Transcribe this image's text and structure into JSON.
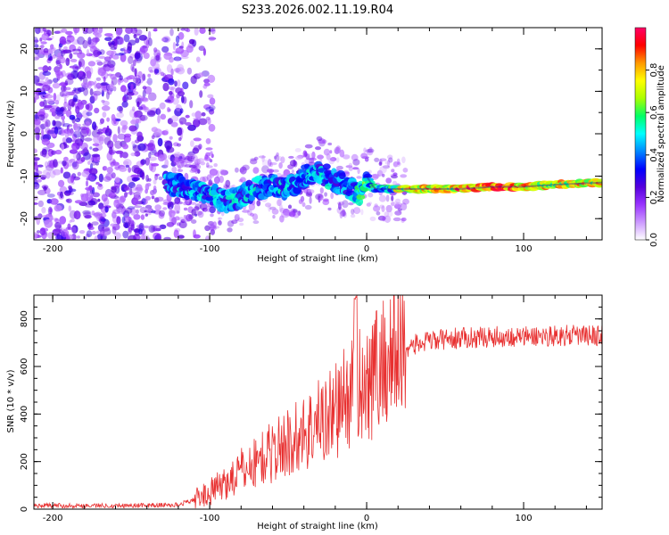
{
  "title": "S233.2026.002.11.19.R04",
  "chart_data": [
    {
      "type": "heatmap",
      "xlabel": "Height of straight line (km)",
      "ylabel": "Frequency (Hz)",
      "xlim": [
        -212,
        150
      ],
      "ylim": [
        -25,
        25
      ],
      "xticks": [
        -200,
        -100,
        0,
        100
      ],
      "yticks": [
        20,
        10,
        0,
        -10,
        -20
      ],
      "colorbar": {
        "label": "Normalized spectral amplitude",
        "range": [
          0,
          1
        ],
        "ticks": [
          "0.0",
          "0.2",
          "0.4",
          "0.6",
          "0.8"
        ],
        "colors": [
          "#ffffff",
          "#cc99ff",
          "#9933ff",
          "#5500dd",
          "#0000ff",
          "#0088ff",
          "#00ffff",
          "#00ff66",
          "#aaff00",
          "#ffff00",
          "#ff9900",
          "#ff0000",
          "#ff0066"
        ]
      },
      "ridge": {
        "x": [
          -125,
          -110,
          -100,
          -90,
          -80,
          -70,
          -60,
          -50,
          -40,
          -30,
          -20,
          -10,
          -5,
          0,
          5,
          10,
          20,
          40,
          60,
          80,
          100,
          120,
          150
        ],
        "freq": [
          -12,
          -13,
          -14,
          -16,
          -15,
          -13,
          -12,
          -13,
          -10,
          -9,
          -11,
          -13,
          -14,
          -10,
          -13,
          -13,
          -13,
          -13,
          -13,
          -12.5,
          -12.5,
          -12,
          -11.5
        ]
      }
    },
    {
      "type": "line",
      "xlabel": "Height of straight line (km)",
      "ylabel": "SNR (10 * v/v)",
      "xlim": [
        -212,
        150
      ],
      "ylim": [
        0,
        900
      ],
      "xticks": [
        -200,
        -100,
        0,
        100
      ],
      "yticks": [
        0,
        200,
        400,
        600,
        800
      ],
      "color": "#e83030",
      "x": [
        -212,
        -180,
        -150,
        -120,
        -110,
        -100,
        -90,
        -80,
        -70,
        -60,
        -50,
        -40,
        -30,
        -20,
        -15,
        -10,
        -5,
        0,
        5,
        10,
        15,
        20,
        25,
        30,
        40,
        50,
        60,
        80,
        100,
        120,
        150
      ],
      "y": [
        15,
        15,
        15,
        18,
        40,
        70,
        110,
        160,
        200,
        240,
        280,
        320,
        370,
        420,
        450,
        480,
        530,
        560,
        580,
        610,
        640,
        670,
        680,
        690,
        705,
        715,
        720,
        725,
        725,
        730,
        730
      ]
    }
  ]
}
